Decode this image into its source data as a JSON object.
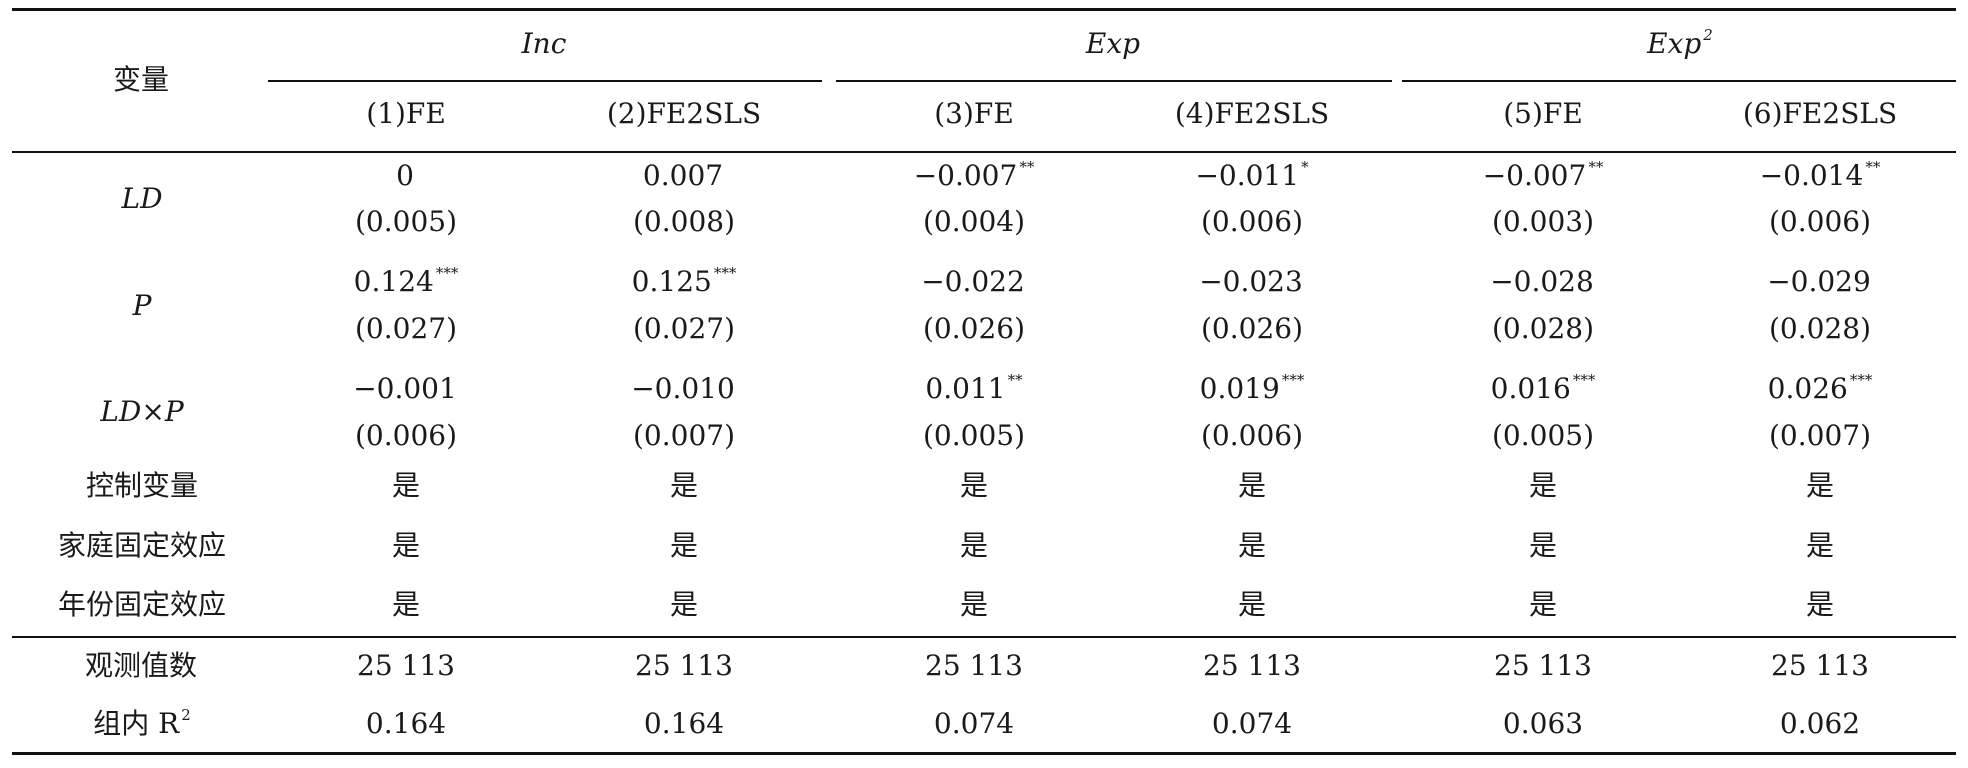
{
  "header": {
    "var_label": "变量",
    "groups": [
      {
        "name": "Inc",
        "sup": ""
      },
      {
        "name": "Exp",
        "sup": ""
      },
      {
        "name": "Exp",
        "sup": "2"
      }
    ],
    "columns": [
      "(1)FE",
      "(2)FE2SLS",
      "(3)FE",
      "(4)FE2SLS",
      "(5)FE",
      "(6)FE2SLS"
    ]
  },
  "rows": [
    {
      "label": "LD",
      "coef": [
        {
          "v": "0",
          "s": ""
        },
        {
          "v": "0.007",
          "s": ""
        },
        {
          "v": "−0.007",
          "s": "**"
        },
        {
          "v": "−0.011",
          "s": "*"
        },
        {
          "v": "−0.007",
          "s": "**"
        },
        {
          "v": "−0.014",
          "s": "**"
        }
      ],
      "se": [
        "(0.005)",
        "(0.008)",
        "(0.004)",
        "(0.006)",
        "(0.003)",
        "(0.006)"
      ]
    },
    {
      "label": "P",
      "coef": [
        {
          "v": "0.124",
          "s": "***"
        },
        {
          "v": "0.125",
          "s": "***"
        },
        {
          "v": "−0.022",
          "s": ""
        },
        {
          "v": "−0.023",
          "s": ""
        },
        {
          "v": "−0.028",
          "s": ""
        },
        {
          "v": "−0.029",
          "s": ""
        }
      ],
      "se": [
        "(0.027)",
        "(0.027)",
        "(0.026)",
        "(0.026)",
        "(0.028)",
        "(0.028)"
      ]
    },
    {
      "label": "LD×P",
      "coef": [
        {
          "v": "−0.001",
          "s": ""
        },
        {
          "v": "−0.010",
          "s": ""
        },
        {
          "v": "0.011",
          "s": "**"
        },
        {
          "v": "0.019",
          "s": "***"
        },
        {
          "v": "0.016",
          "s": "***"
        },
        {
          "v": "0.026",
          "s": "***"
        }
      ],
      "se": [
        "(0.006)",
        "(0.007)",
        "(0.005)",
        "(0.006)",
        "(0.005)",
        "(0.007)"
      ]
    }
  ],
  "controls": [
    {
      "label": "控制变量",
      "values": [
        "是",
        "是",
        "是",
        "是",
        "是",
        "是"
      ]
    },
    {
      "label": "家庭固定效应",
      "values": [
        "是",
        "是",
        "是",
        "是",
        "是",
        "是"
      ]
    },
    {
      "label": "年份固定效应",
      "values": [
        "是",
        "是",
        "是",
        "是",
        "是",
        "是"
      ]
    }
  ],
  "stats": [
    {
      "label": "观测值数",
      "label_sup": "",
      "values": [
        "25 113",
        "25 113",
        "25 113",
        "25 113",
        "25 113",
        "25 113"
      ]
    },
    {
      "label": "组内 R",
      "label_sup": "2",
      "values": [
        "0.164",
        "0.164",
        "0.074",
        "0.074",
        "0.063",
        "0.062"
      ]
    }
  ]
}
